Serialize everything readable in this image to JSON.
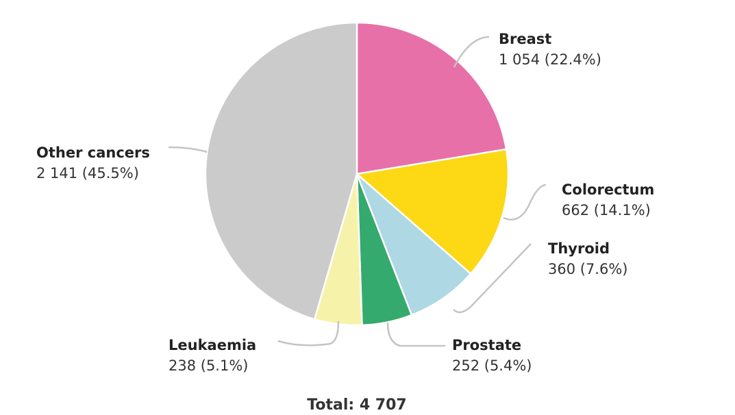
{
  "chart_data": {
    "type": "pie",
    "start_angle_deg": 0,
    "direction": "clockwise",
    "slices": [
      {
        "name": "Breast",
        "value": 1054,
        "value_label": "1 054 (22.4%)",
        "color": "#E870A8"
      },
      {
        "name": "Colorectum",
        "value": 662,
        "value_label": "662 (14.1%)",
        "color": "#FCD815"
      },
      {
        "name": "Thyroid",
        "value": 360,
        "value_label": "360 (7.6%)",
        "color": "#ADD8E4"
      },
      {
        "name": "Prostate",
        "value": 252,
        "value_label": "252 (5.4%)",
        "color": "#35AA6E"
      },
      {
        "name": "Leukaemia",
        "value": 238,
        "value_label": "238 (5.1%)",
        "color": "#F7F2A9"
      },
      {
        "name": "Other cancers",
        "value": 2141,
        "value_label": "2 141 (45.5%)",
        "color": "#CBCBCB"
      }
    ],
    "total_label": "Total: 4 707"
  }
}
